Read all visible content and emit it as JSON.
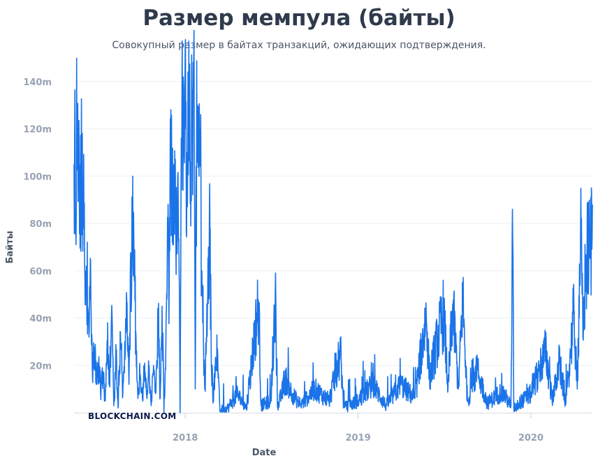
{
  "chart_data": {
    "type": "line",
    "title": "Размер мемпула (байты)",
    "subtitle": "Совокупный размер в байтах транзакций, ожидающих подтверждения.",
    "xlabel": "Date",
    "ylabel": "Байты",
    "watermark": "BLOCKCHAIN.COM",
    "x_ticks": [
      "2018",
      "2019",
      "2020"
    ],
    "x_tick_dates": [
      "2018-01-01",
      "2019-01-01",
      "2020-01-01"
    ],
    "xlim": [
      "2017-05-11",
      "2020-05-10"
    ],
    "y_ticks": [
      "20m",
      "40m",
      "60m",
      "80m",
      "100m",
      "120m",
      "140m"
    ],
    "y_tick_values": [
      20,
      40,
      60,
      80,
      100,
      120,
      140
    ],
    "y_unit": "m",
    "ylim": [
      0,
      142
    ],
    "grid": "horizontal",
    "series": [
      {
        "color": "#1a73e8",
        "points": [
          [
            "2017-05-11",
            105
          ],
          [
            "2017-05-17",
            112
          ],
          [
            "2017-05-22",
            95
          ],
          [
            "2017-05-26",
            108
          ],
          [
            "2017-06-01",
            78
          ],
          [
            "2017-06-06",
            62
          ],
          [
            "2017-06-11",
            42
          ],
          [
            "2017-06-15",
            64
          ],
          [
            "2017-06-19",
            15
          ],
          [
            "2017-06-23",
            27
          ],
          [
            "2017-06-27",
            12
          ],
          [
            "2017-07-02",
            21
          ],
          [
            "2017-07-06",
            9
          ],
          [
            "2017-07-11",
            17
          ],
          [
            "2017-07-16",
            5
          ],
          [
            "2017-07-21",
            38
          ],
          [
            "2017-07-25",
            12
          ],
          [
            "2017-07-29",
            40
          ],
          [
            "2017-08-03",
            3
          ],
          [
            "2017-08-08",
            24
          ],
          [
            "2017-08-12",
            2
          ],
          [
            "2017-08-17",
            34
          ],
          [
            "2017-08-22",
            8
          ],
          [
            "2017-08-26",
            30
          ],
          [
            "2017-08-31",
            46
          ],
          [
            "2017-09-04",
            12
          ],
          [
            "2017-09-08",
            60
          ],
          [
            "2017-09-12",
            100
          ],
          [
            "2017-09-15",
            60
          ],
          [
            "2017-09-19",
            30
          ],
          [
            "2017-09-23",
            6
          ],
          [
            "2017-09-28",
            16
          ],
          [
            "2017-10-03",
            5
          ],
          [
            "2017-10-07",
            21
          ],
          [
            "2017-10-12",
            6
          ],
          [
            "2017-10-16",
            17
          ],
          [
            "2017-10-21",
            3
          ],
          [
            "2017-10-26",
            20
          ],
          [
            "2017-10-31",
            9
          ],
          [
            "2017-11-05",
            40
          ],
          [
            "2017-11-09",
            6
          ],
          [
            "2017-11-13",
            45
          ],
          [
            "2017-11-17",
            0
          ],
          [
            "2017-11-21",
            30
          ],
          [
            "2017-11-25",
            76
          ],
          [
            "2017-11-28",
            55
          ],
          [
            "2017-12-01",
            116
          ],
          [
            "2017-12-04",
            98
          ],
          [
            "2017-12-08",
            105
          ],
          [
            "2017-12-12",
            72
          ],
          [
            "2017-12-16",
            100
          ],
          [
            "2017-12-19",
            60
          ],
          [
            "2017-12-21",
            0
          ],
          [
            "2017-12-23",
            95
          ],
          [
            "2017-12-26",
            123
          ],
          [
            "2017-12-29",
            108
          ],
          [
            "2018-01-02",
            120
          ],
          [
            "2018-01-05",
            110
          ],
          [
            "2018-01-09",
            118
          ],
          [
            "2018-01-12",
            106
          ],
          [
            "2018-01-15",
            115
          ],
          [
            "2018-01-18",
            136
          ],
          [
            "2018-01-20",
            118
          ],
          [
            "2018-01-22",
            10
          ],
          [
            "2018-01-24",
            104
          ],
          [
            "2018-01-27",
            130
          ],
          [
            "2018-01-30",
            100
          ],
          [
            "2018-02-02",
            104
          ],
          [
            "2018-02-05",
            60
          ],
          [
            "2018-02-08",
            35
          ],
          [
            "2018-02-11",
            10
          ],
          [
            "2018-02-15",
            30
          ],
          [
            "2018-02-19",
            70
          ],
          [
            "2018-02-22",
            78
          ],
          [
            "2018-02-25",
            20
          ],
          [
            "2018-03-01",
            6
          ],
          [
            "2018-03-05",
            15
          ],
          [
            "2018-03-10",
            27
          ],
          [
            "2018-03-15",
            1
          ],
          [
            "2018-04-01",
            2
          ],
          [
            "2018-04-20",
            8
          ],
          [
            "2018-05-10",
            2
          ],
          [
            "2018-06-05",
            47
          ],
          [
            "2018-06-10",
            3
          ],
          [
            "2018-07-01",
            5
          ],
          [
            "2018-07-10",
            51
          ],
          [
            "2018-07-15",
            2
          ],
          [
            "2018-08-01",
            14
          ],
          [
            "2018-08-15",
            8
          ],
          [
            "2018-09-01",
            3
          ],
          [
            "2018-10-01",
            10
          ],
          [
            "2018-11-01",
            5
          ],
          [
            "2018-11-25",
            26
          ],
          [
            "2018-12-01",
            2
          ],
          [
            "2019-01-01",
            5
          ],
          [
            "2019-02-01",
            12
          ],
          [
            "2019-03-01",
            3
          ],
          [
            "2019-04-01",
            12
          ],
          [
            "2019-05-01",
            6
          ],
          [
            "2019-05-25",
            41
          ],
          [
            "2019-06-01",
            15
          ],
          [
            "2019-06-20",
            33
          ],
          [
            "2019-07-01",
            42
          ],
          [
            "2019-07-10",
            10
          ],
          [
            "2019-07-20",
            46
          ],
          [
            "2019-08-01",
            10
          ],
          [
            "2019-08-10",
            49
          ],
          [
            "2019-08-20",
            5
          ],
          [
            "2019-09-10",
            18
          ],
          [
            "2019-10-01",
            4
          ],
          [
            "2019-11-01",
            9
          ],
          [
            "2019-11-20",
            3
          ],
          [
            "2019-11-23",
            86
          ],
          [
            "2019-11-26",
            2
          ],
          [
            "2020-01-01",
            8
          ],
          [
            "2020-02-01",
            26
          ],
          [
            "2020-02-15",
            5
          ],
          [
            "2020-03-01",
            21
          ],
          [
            "2020-03-15",
            4
          ],
          [
            "2020-04-01",
            42
          ],
          [
            "2020-04-08",
            10
          ],
          [
            "2020-04-15",
            78
          ],
          [
            "2020-04-20",
            32
          ],
          [
            "2020-04-25",
            57
          ],
          [
            "2020-05-01",
            70
          ],
          [
            "2020-05-06",
            68
          ],
          [
            "2020-05-10",
            88
          ]
        ]
      }
    ]
  }
}
